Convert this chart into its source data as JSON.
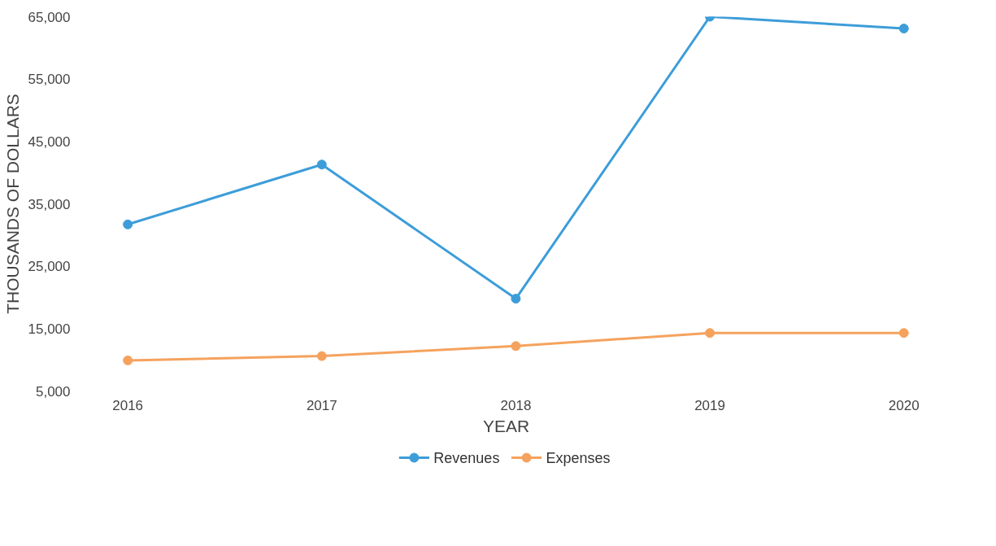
{
  "chart_data": {
    "type": "line",
    "xlabel": "YEAR",
    "ylabel": "THOUSANDS OF DOLLARS",
    "categories": [
      "2016",
      "2017",
      "2018",
      "2019",
      "2020"
    ],
    "series": [
      {
        "name": "Revenues",
        "color": "#3d9dd9",
        "values": [
          31700,
          41300,
          19800,
          65000,
          63100
        ]
      },
      {
        "name": "Expenses",
        "color": "#f5a25d",
        "values": [
          9900,
          10600,
          12200,
          14300,
          14300
        ]
      }
    ],
    "ylim": [
      5000,
      65000
    ],
    "yticks": [
      {
        "value": 5000,
        "label": "5,000"
      },
      {
        "value": 15000,
        "label": "15,000"
      },
      {
        "value": 25000,
        "label": "25,000"
      },
      {
        "value": 35000,
        "label": "35,000"
      },
      {
        "value": 45000,
        "label": "45,000"
      },
      {
        "value": 55000,
        "label": "55,000"
      },
      {
        "value": 65000,
        "label": "65,000"
      }
    ],
    "grid": false,
    "legend": "bottom",
    "marker": "circle",
    "line_style": "solid"
  }
}
